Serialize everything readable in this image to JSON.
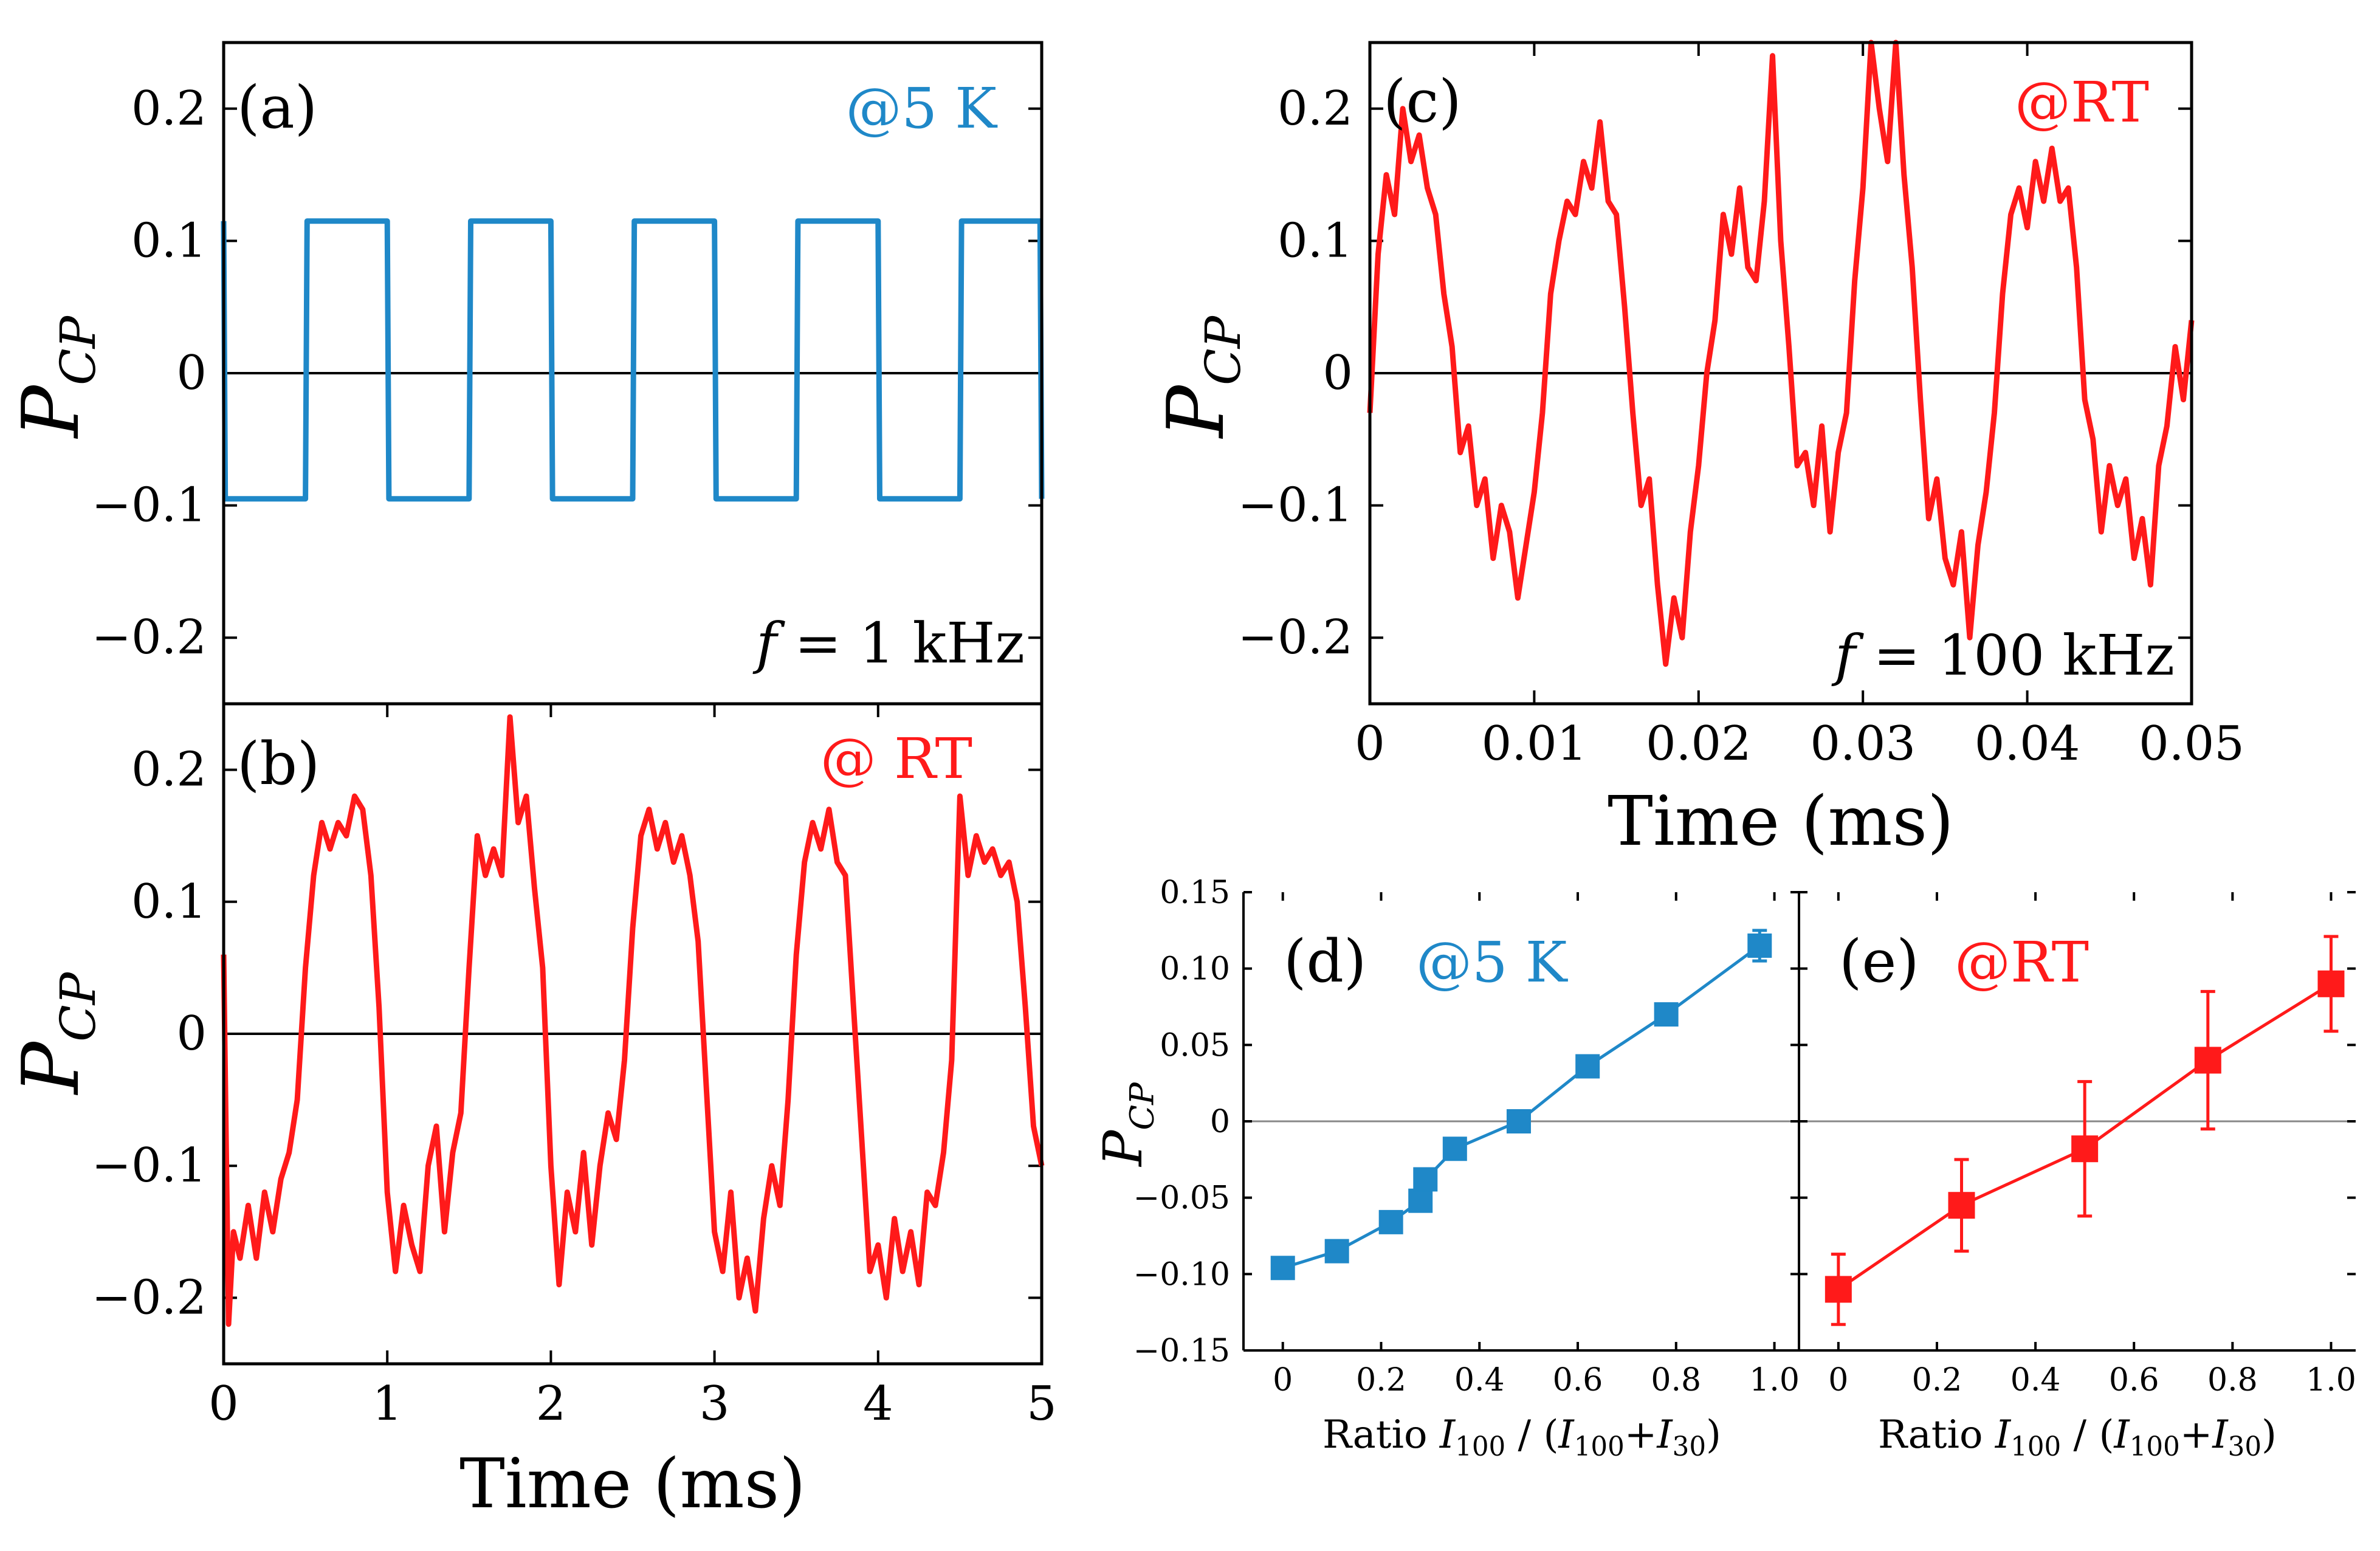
{
  "figure": {
    "ylabel_main": "P",
    "ylabel_sub": "CP"
  },
  "chart_data": [
    {
      "id": "a",
      "type": "line",
      "panel_label": "(a)",
      "annotation": "@5 K",
      "annotation_color": "#1f88c8",
      "freq_label": "f = 1 kHz",
      "xlim": [
        0,
        5
      ],
      "ylim": [
        -0.25,
        0.25
      ],
      "yticks": [
        -0.2,
        -0.1,
        0,
        0.1,
        0.2
      ],
      "ytick_labels": [
        "−0.2",
        "−0.1",
        "0",
        "0.1",
        "0.2"
      ],
      "xlabel": "",
      "ylabel": "P_CP",
      "line_color": "#1f88c8",
      "series": [
        {
          "name": "@5 K",
          "x": [
            0,
            0.01,
            0.5,
            0.51,
            1.0,
            1.01,
            1.5,
            1.51,
            2.0,
            2.01,
            2.5,
            2.51,
            3.0,
            3.01,
            3.5,
            3.51,
            4.0,
            4.01,
            4.5,
            4.51,
            4.99,
            5.0
          ],
          "y": [
            0.115,
            -0.095,
            -0.095,
            0.115,
            0.115,
            -0.095,
            -0.095,
            0.115,
            0.115,
            -0.095,
            -0.095,
            0.115,
            0.115,
            -0.095,
            -0.095,
            0.115,
            0.115,
            -0.095,
            -0.095,
            0.115,
            0.115,
            -0.095
          ]
        }
      ]
    },
    {
      "id": "b",
      "type": "line",
      "panel_label": "(b)",
      "annotation": "@ RT",
      "annotation_color": "#ff1a1a",
      "xlim": [
        0,
        5
      ],
      "ylim": [
        -0.25,
        0.25
      ],
      "xticks": [
        0,
        1,
        2,
        3,
        4,
        5
      ],
      "xtick_labels": [
        "0",
        "1",
        "2",
        "3",
        "4",
        "5"
      ],
      "yticks": [
        -0.2,
        -0.1,
        0,
        0.1,
        0.2
      ],
      "ytick_labels": [
        "−0.2",
        "−0.1",
        "0",
        "0.1",
        "0.2"
      ],
      "xlabel": "Time (ms)",
      "ylabel": "P_CP",
      "line_color": "#ff1a1a",
      "series": [
        {
          "name": "@ RT",
          "x": [
            0,
            0.03,
            0.06,
            0.1,
            0.15,
            0.2,
            0.25,
            0.3,
            0.35,
            0.4,
            0.45,
            0.5,
            0.55,
            0.6,
            0.65,
            0.7,
            0.75,
            0.8,
            0.85,
            0.9,
            0.95,
            1.0,
            1.05,
            1.1,
            1.15,
            1.2,
            1.25,
            1.3,
            1.35,
            1.4,
            1.45,
            1.5,
            1.55,
            1.6,
            1.65,
            1.7,
            1.75,
            1.8,
            1.85,
            1.9,
            1.95,
            2.0,
            2.05,
            2.1,
            2.15,
            2.2,
            2.25,
            2.3,
            2.35,
            2.4,
            2.45,
            2.5,
            2.55,
            2.6,
            2.65,
            2.7,
            2.75,
            2.8,
            2.85,
            2.9,
            2.95,
            3.0,
            3.05,
            3.1,
            3.15,
            3.2,
            3.25,
            3.3,
            3.35,
            3.4,
            3.45,
            3.5,
            3.55,
            3.6,
            3.65,
            3.7,
            3.75,
            3.8,
            3.85,
            3.9,
            3.95,
            4.0,
            4.05,
            4.1,
            4.15,
            4.2,
            4.25,
            4.3,
            4.35,
            4.4,
            4.45,
            4.5,
            4.55,
            4.6,
            4.65,
            4.7,
            4.75,
            4.8,
            4.85,
            4.9,
            4.95,
            5.0
          ],
          "y": [
            0.06,
            -0.22,
            -0.15,
            -0.17,
            -0.13,
            -0.17,
            -0.12,
            -0.15,
            -0.11,
            -0.09,
            -0.05,
            0.05,
            0.12,
            0.16,
            0.14,
            0.16,
            0.15,
            0.18,
            0.17,
            0.12,
            0.02,
            -0.12,
            -0.18,
            -0.13,
            -0.16,
            -0.18,
            -0.1,
            -0.07,
            -0.15,
            -0.09,
            -0.06,
            0.05,
            0.15,
            0.12,
            0.14,
            0.12,
            0.24,
            0.16,
            0.18,
            0.11,
            0.05,
            -0.1,
            -0.19,
            -0.12,
            -0.15,
            -0.09,
            -0.16,
            -0.1,
            -0.06,
            -0.08,
            -0.02,
            0.08,
            0.15,
            0.17,
            0.14,
            0.16,
            0.13,
            0.15,
            0.12,
            0.07,
            -0.04,
            -0.15,
            -0.18,
            -0.12,
            -0.2,
            -0.17,
            -0.21,
            -0.14,
            -0.1,
            -0.13,
            -0.05,
            0.06,
            0.13,
            0.16,
            0.14,
            0.17,
            0.13,
            0.12,
            0.02,
            -0.08,
            -0.18,
            -0.16,
            -0.2,
            -0.14,
            -0.18,
            -0.15,
            -0.19,
            -0.12,
            -0.13,
            -0.09,
            -0.02,
            0.18,
            0.12,
            0.15,
            0.13,
            0.14,
            0.12,
            0.13,
            0.1,
            0.02,
            -0.07,
            -0.1
          ]
        }
      ]
    },
    {
      "id": "c",
      "type": "line",
      "panel_label": "(c)",
      "annotation": "@RT",
      "annotation_color": "#ff1a1a",
      "freq_label": "f = 100 kHz",
      "xlim": [
        0,
        0.05
      ],
      "ylim": [
        -0.25,
        0.25
      ],
      "xticks": [
        0,
        0.01,
        0.02,
        0.03,
        0.04,
        0.05
      ],
      "xtick_labels": [
        "0",
        "0.01",
        "0.02",
        "0.03",
        "0.04",
        "0.05"
      ],
      "yticks": [
        -0.2,
        -0.1,
        0,
        0.1,
        0.2
      ],
      "ytick_labels": [
        "−0.2",
        "−0.1",
        "0",
        "0.1",
        "0.2"
      ],
      "xlabel": "Time (ms)",
      "ylabel": "P_CP",
      "line_color": "#ff1a1a",
      "series": [
        {
          "name": "@RT",
          "x": [
            0,
            0.0005,
            0.001,
            0.0015,
            0.002,
            0.0025,
            0.003,
            0.0035,
            0.004,
            0.0045,
            0.005,
            0.0055,
            0.006,
            0.0065,
            0.007,
            0.0075,
            0.008,
            0.0085,
            0.009,
            0.0095,
            0.01,
            0.0105,
            0.011,
            0.0115,
            0.012,
            0.0125,
            0.013,
            0.0135,
            0.014,
            0.0145,
            0.015,
            0.0155,
            0.016,
            0.0165,
            0.017,
            0.0175,
            0.018,
            0.0185,
            0.019,
            0.0195,
            0.02,
            0.0205,
            0.021,
            0.0215,
            0.022,
            0.0225,
            0.023,
            0.0235,
            0.024,
            0.0245,
            0.025,
            0.0255,
            0.026,
            0.0265,
            0.027,
            0.0275,
            0.028,
            0.0285,
            0.029,
            0.0295,
            0.03,
            0.0305,
            0.031,
            0.0315,
            0.032,
            0.0325,
            0.033,
            0.0335,
            0.034,
            0.0345,
            0.035,
            0.0355,
            0.036,
            0.0365,
            0.037,
            0.0375,
            0.038,
            0.0385,
            0.039,
            0.0395,
            0.04,
            0.0405,
            0.041,
            0.0415,
            0.042,
            0.0425,
            0.043,
            0.0435,
            0.044,
            0.0445,
            0.045,
            0.0455,
            0.046,
            0.0465,
            0.047,
            0.0475,
            0.048,
            0.0485,
            0.049,
            0.0495,
            0.05
          ],
          "y": [
            -0.03,
            0.09,
            0.15,
            0.12,
            0.2,
            0.16,
            0.18,
            0.14,
            0.12,
            0.06,
            0.02,
            -0.06,
            -0.04,
            -0.1,
            -0.08,
            -0.14,
            -0.1,
            -0.12,
            -0.17,
            -0.13,
            -0.09,
            -0.03,
            0.06,
            0.1,
            0.13,
            0.12,
            0.16,
            0.14,
            0.19,
            0.13,
            0.12,
            0.05,
            -0.03,
            -0.1,
            -0.08,
            -0.16,
            -0.22,
            -0.17,
            -0.2,
            -0.12,
            -0.07,
            0.0,
            0.04,
            0.12,
            0.09,
            0.14,
            0.08,
            0.07,
            0.13,
            0.24,
            0.1,
            0.02,
            -0.07,
            -0.06,
            -0.1,
            -0.04,
            -0.12,
            -0.06,
            -0.03,
            0.07,
            0.14,
            0.25,
            0.2,
            0.16,
            0.25,
            0.15,
            0.08,
            -0.02,
            -0.11,
            -0.08,
            -0.14,
            -0.16,
            -0.12,
            -0.2,
            -0.13,
            -0.09,
            -0.03,
            0.06,
            0.12,
            0.14,
            0.11,
            0.16,
            0.13,
            0.17,
            0.13,
            0.14,
            0.08,
            -0.02,
            -0.05,
            -0.12,
            -0.07,
            -0.1,
            -0.08,
            -0.14,
            -0.11,
            -0.16,
            -0.07,
            -0.04,
            0.02,
            -0.02,
            0.04
          ]
        }
      ]
    },
    {
      "id": "d",
      "type": "scatter",
      "panel_label": "(d)",
      "annotation": "@5 K",
      "annotation_color": "#1f88c8",
      "xlim": [
        -0.08,
        1.05
      ],
      "ylim": [
        -0.15,
        0.15
      ],
      "xticks": [
        0,
        0.2,
        0.4,
        0.6,
        0.8,
        1.0
      ],
      "xtick_labels": [
        "0",
        "0.2",
        "0.4",
        "0.6",
        "0.8",
        "1.0"
      ],
      "yticks": [
        -0.15,
        -0.1,
        -0.05,
        0,
        0.05,
        0.1,
        0.15
      ],
      "ytick_labels": [
        "−0.15",
        "−0.10",
        "−0.05",
        "0",
        "0.05",
        "0.10",
        "0.15"
      ],
      "xlabel_prefix": "Ratio ",
      "xlabel_expr": "I_100 / (I_100+I_30)",
      "ylabel": "P_CP",
      "marker_color": "#1f88c8",
      "series": [
        {
          "name": "@5 K",
          "x": [
            0,
            0.11,
            0.22,
            0.28,
            0.29,
            0.35,
            0.48,
            0.62,
            0.78,
            0.97
          ],
          "y": [
            -0.096,
            -0.085,
            -0.066,
            -0.052,
            -0.038,
            -0.018,
            0.0,
            0.036,
            0.07,
            0.115
          ],
          "err": [
            0,
            0,
            0,
            0,
            0,
            0,
            0,
            0,
            0,
            0.01
          ]
        }
      ]
    },
    {
      "id": "e",
      "type": "scatter",
      "panel_label": "(e)",
      "annotation": "@RT",
      "annotation_color": "#ff1a1a",
      "xlim": [
        -0.08,
        1.05
      ],
      "ylim": [
        -0.15,
        0.15
      ],
      "xticks": [
        0,
        0.2,
        0.4,
        0.6,
        0.8,
        1.0
      ],
      "xtick_labels": [
        "0",
        "0.2",
        "0.4",
        "0.6",
        "0.8",
        "1.0"
      ],
      "yticks": [
        -0.15,
        -0.1,
        -0.05,
        0,
        0.05,
        0.1,
        0.15
      ],
      "xlabel_prefix": "Ratio ",
      "xlabel_expr": "I_100 / (I_100+I_30)",
      "marker_color": "#ff1a1a",
      "series": [
        {
          "name": "@RT",
          "x": [
            0,
            0.25,
            0.5,
            0.75,
            1.0
          ],
          "y": [
            -0.11,
            -0.055,
            -0.018,
            0.04,
            0.09
          ],
          "err": [
            0.023,
            0.03,
            0.044,
            0.045,
            0.031
          ]
        }
      ]
    }
  ]
}
